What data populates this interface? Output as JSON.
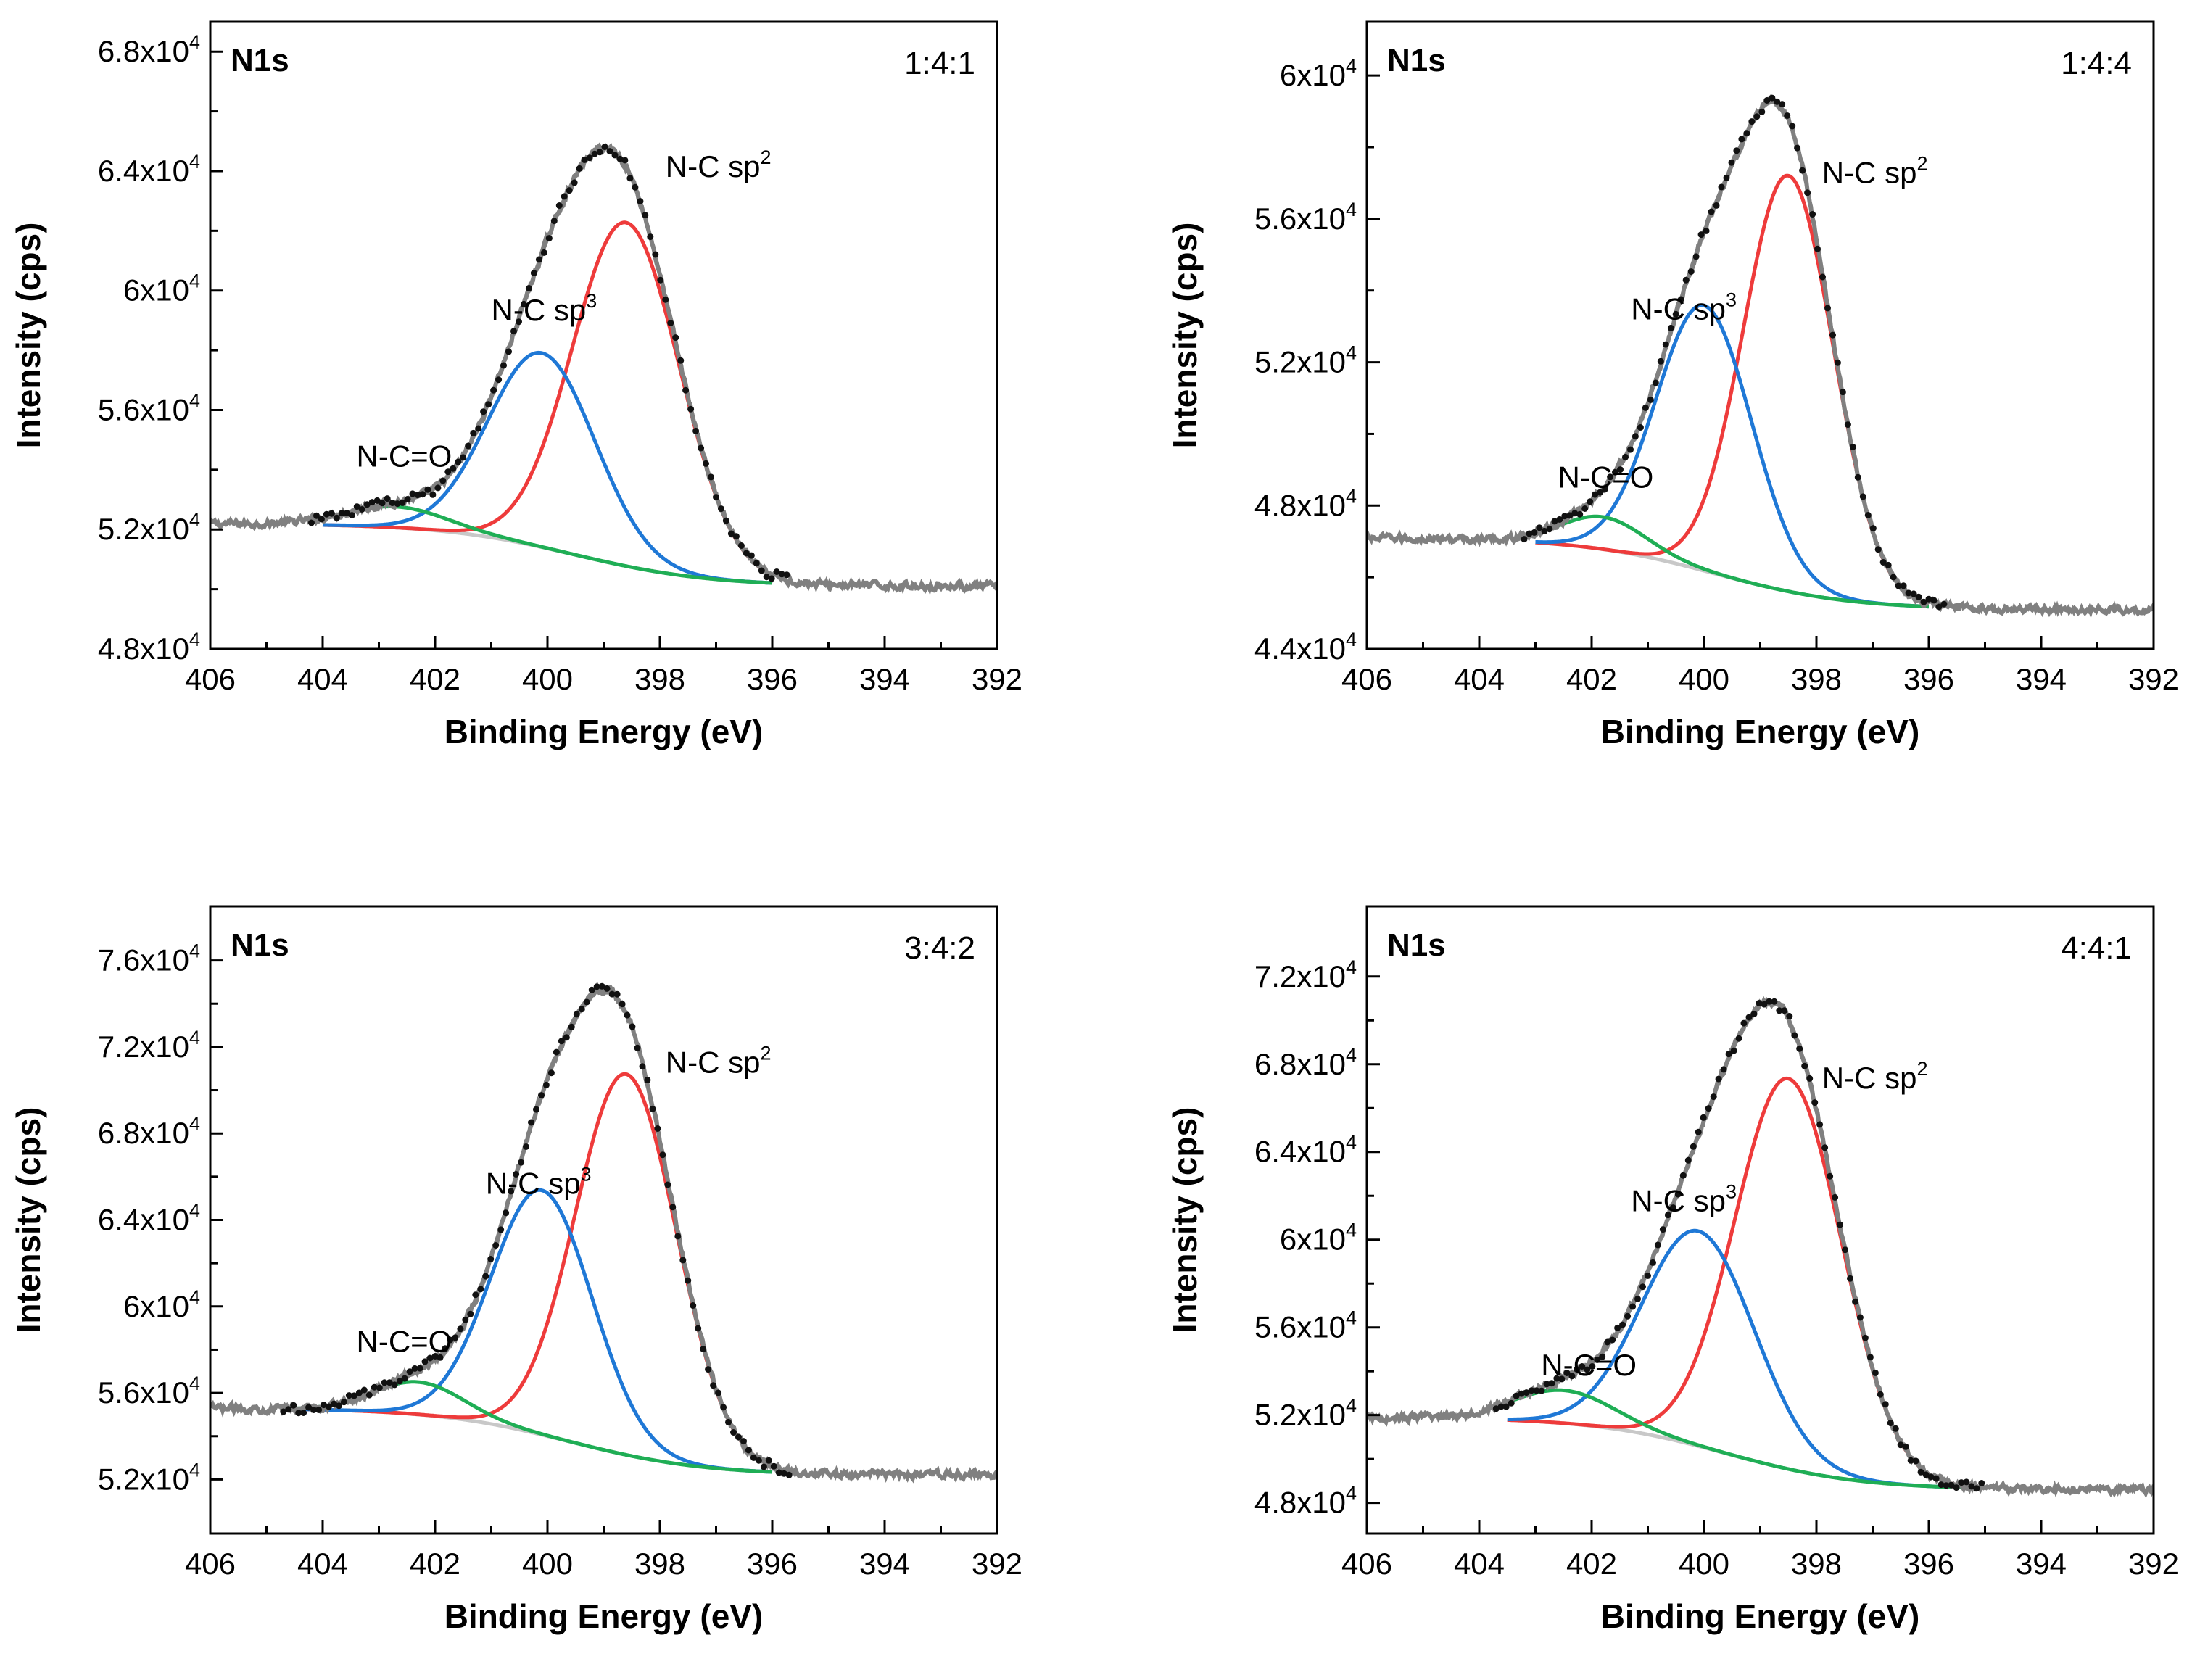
{
  "figure": {
    "colors": {
      "raw": "#111111",
      "envelope": "#808080",
      "background": "#c8c8c8",
      "sp2": "#ee3b3b",
      "sp3": "#1f78d6",
      "nco": "#1fae55",
      "frame": "#000000"
    }
  },
  "chart_data": [
    {
      "type": "line",
      "panel_label": "N1s",
      "title": "1:4:1",
      "xlabel": "Binding Energy (eV)",
      "ylabel": "Intensity (cps)",
      "xlim": [
        406,
        392
      ],
      "ylim": [
        48000,
        69000
      ],
      "x_ticks": [
        406,
        404,
        402,
        400,
        398,
        396,
        394,
        392
      ],
      "x_tick_labels": [
        "406",
        "404",
        "402",
        "400",
        "398",
        "396",
        "394",
        "392"
      ],
      "y_ticks": [
        48000,
        52000,
        56000,
        60000,
        64000,
        68000
      ],
      "y_tick_labels": [
        {
          "mant": "4.8x10",
          "exp": "4"
        },
        {
          "mant": "5.2x10",
          "exp": "4"
        },
        {
          "mant": "5.6x10",
          "exp": "4"
        },
        {
          "mant": "6x10",
          "exp": "4"
        },
        {
          "mant": "6.4x10",
          "exp": "4"
        },
        {
          "mant": "6.8x10",
          "exp": "4"
        }
      ],
      "raw_range": [
        406,
        392
      ],
      "fit_range": [
        404,
        396
      ],
      "background": {
        "left": 52200,
        "right": 50100,
        "center": 399.5,
        "width": 1.2
      },
      "components": [
        {
          "name": "N-C sp2",
          "center": 398.6,
          "amplitude": 11500,
          "sigma": 0.95,
          "color_key": "sp2"
        },
        {
          "name": "N-C sp3",
          "center": 400.1,
          "amplitude": 6500,
          "sigma": 0.95,
          "color_key": "sp3"
        },
        {
          "name": "N-C=O",
          "center": 402.7,
          "amplitude": 700,
          "sigma": 0.9,
          "color_key": "nco"
        }
      ],
      "annotations": [
        {
          "key": "sp2",
          "text": "N-C sp",
          "sup": "2",
          "at": [
            397.9,
            63800
          ]
        },
        {
          "key": "sp3",
          "text": "N-C sp",
          "sup": "3",
          "at": [
            401.0,
            59000
          ]
        },
        {
          "key": "nco",
          "text": "N-C=O",
          "sup": "",
          "at": [
            403.4,
            54100
          ]
        }
      ]
    },
    {
      "type": "line",
      "panel_label": "N1s",
      "title": "1:4:4",
      "xlabel": "Binding Energy (eV)",
      "ylabel": "Intensity (cps)",
      "xlim": [
        406,
        392
      ],
      "ylim": [
        44000,
        61500
      ],
      "x_ticks": [
        406,
        404,
        402,
        400,
        398,
        396,
        394,
        392
      ],
      "x_tick_labels": [
        "406",
        "404",
        "402",
        "400",
        "398",
        "396",
        "394",
        "392"
      ],
      "y_ticks": [
        44000,
        48000,
        52000,
        56000,
        60000
      ],
      "y_tick_labels": [
        {
          "mant": "4.4x10",
          "exp": "4"
        },
        {
          "mant": "4.8x10",
          "exp": "4"
        },
        {
          "mant": "5.2x10",
          "exp": "4"
        },
        {
          "mant": "5.6x10",
          "exp": "4"
        },
        {
          "mant": "6x10",
          "exp": "4"
        }
      ],
      "raw_range": [
        406,
        392
      ],
      "fit_range": [
        403,
        396
      ],
      "background": {
        "left": 47100,
        "right": 45100,
        "center": 399.8,
        "width": 1.2
      },
      "components": [
        {
          "name": "N-C sp2",
          "center": 398.5,
          "amplitude": 11600,
          "sigma": 0.8,
          "color_key": "sp2"
        },
        {
          "name": "N-C sp3",
          "center": 400.0,
          "amplitude": 7400,
          "sigma": 0.85,
          "color_key": "sp3"
        },
        {
          "name": "N-C=O",
          "center": 401.8,
          "amplitude": 900,
          "sigma": 0.75,
          "color_key": "nco"
        }
      ],
      "annotations": [
        {
          "key": "sp2",
          "text": "N-C sp",
          "sup": "2",
          "at": [
            397.9,
            57000
          ]
        },
        {
          "key": "sp3",
          "text": "N-C sp",
          "sup": "3",
          "at": [
            401.3,
            53200
          ]
        },
        {
          "key": "nco",
          "text": "N-C=O",
          "sup": "",
          "at": [
            402.6,
            48500
          ]
        }
      ]
    },
    {
      "type": "line",
      "panel_label": "N1s",
      "title": "3:4:2",
      "xlabel": "Binding Energy (eV)",
      "ylabel": "Intensity (cps)",
      "xlim": [
        406,
        392
      ],
      "ylim": [
        49500,
        78500
      ],
      "x_ticks": [
        406,
        404,
        402,
        400,
        398,
        396,
        394,
        392
      ],
      "x_tick_labels": [
        "406",
        "404",
        "402",
        "400",
        "398",
        "396",
        "394",
        "392"
      ],
      "y_ticks": [
        52000,
        56000,
        60000,
        64000,
        68000,
        72000,
        76000
      ],
      "y_tick_labels": [
        {
          "mant": "5.2x10",
          "exp": "4"
        },
        {
          "mant": "5.6x10",
          "exp": "4"
        },
        {
          "mant": "6x10",
          "exp": "4"
        },
        {
          "mant": "6.4x10",
          "exp": "4"
        },
        {
          "mant": "6.8x10",
          "exp": "4"
        },
        {
          "mant": "7.2x10",
          "exp": "4"
        },
        {
          "mant": "7.6x10",
          "exp": "4"
        }
      ],
      "raw_range": [
        406,
        392
      ],
      "fit_range": [
        404.5,
        396
      ],
      "background": {
        "left": 55300,
        "right": 52200,
        "center": 399.6,
        "width": 1.2
      },
      "components": [
        {
          "name": "N-C sp2",
          "center": 398.6,
          "amplitude": 17600,
          "sigma": 0.9,
          "color_key": "sp2"
        },
        {
          "name": "N-C sp3",
          "center": 400.1,
          "amplitude": 11300,
          "sigma": 0.9,
          "color_key": "sp3"
        },
        {
          "name": "N-C=O",
          "center": 402.3,
          "amplitude": 1500,
          "sigma": 0.8,
          "color_key": "nco"
        }
      ],
      "annotations": [
        {
          "key": "sp2",
          "text": "N-C sp",
          "sup": "2",
          "at": [
            397.9,
            70800
          ]
        },
        {
          "key": "sp3",
          "text": "N-C sp",
          "sup": "3",
          "at": [
            401.1,
            65200
          ]
        },
        {
          "key": "nco",
          "text": "N-C=O",
          "sup": "",
          "at": [
            403.4,
            57900
          ]
        }
      ]
    },
    {
      "type": "line",
      "panel_label": "N1s",
      "title": "4:4:1",
      "xlabel": "Binding Energy (eV)",
      "ylabel": "Intensity (cps)",
      "xlim": [
        406,
        392
      ],
      "ylim": [
        46600,
        75200
      ],
      "x_ticks": [
        406,
        404,
        402,
        400,
        398,
        396,
        394,
        392
      ],
      "x_tick_labels": [
        "406",
        "404",
        "402",
        "400",
        "398",
        "396",
        "394",
        "392"
      ],
      "y_ticks": [
        48000,
        52000,
        56000,
        60000,
        64000,
        68000,
        72000
      ],
      "y_tick_labels": [
        {
          "mant": "4.8x10",
          "exp": "4"
        },
        {
          "mant": "5.2x10",
          "exp": "4"
        },
        {
          "mant": "5.6x10",
          "exp": "4"
        },
        {
          "mant": "6x10",
          "exp": "4"
        },
        {
          "mant": "6.4x10",
          "exp": "4"
        },
        {
          "mant": "6.8x10",
          "exp": "4"
        },
        {
          "mant": "7.2x10",
          "exp": "4"
        }
      ],
      "raw_range": [
        406,
        392
      ],
      "fit_range": [
        403.5,
        395.3
      ],
      "background": {
        "left": 51900,
        "right": 48600,
        "center": 399.6,
        "width": 1.2
      },
      "components": [
        {
          "name": "N-C sp2",
          "center": 398.5,
          "amplitude": 17800,
          "sigma": 0.95,
          "color_key": "sp2"
        },
        {
          "name": "N-C sp3",
          "center": 400.1,
          "amplitude": 9800,
          "sigma": 1.0,
          "color_key": "sp3"
        },
        {
          "name": "N-C=O",
          "center": 402.5,
          "amplitude": 1500,
          "sigma": 0.9,
          "color_key": "nco"
        }
      ],
      "annotations": [
        {
          "key": "sp2",
          "text": "N-C sp",
          "sup": "2",
          "at": [
            397.9,
            66900
          ]
        },
        {
          "key": "sp3",
          "text": "N-C sp",
          "sup": "3",
          "at": [
            401.3,
            61300
          ]
        },
        {
          "key": "nco",
          "text": "N-C=O",
          "sup": "",
          "at": [
            402.9,
            53800
          ]
        }
      ]
    }
  ]
}
